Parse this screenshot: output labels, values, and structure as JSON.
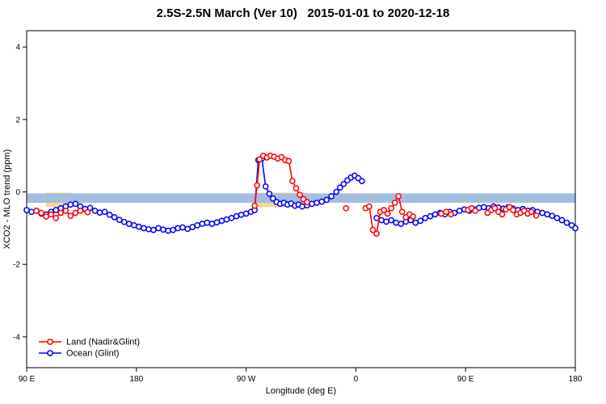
{
  "title": "2.5S-2.5N March (Ver 10)   2015-01-01 to 2020-12-18",
  "chart_data": {
    "type": "line",
    "title": "2.5S-2.5N March (Ver 10)   2015-01-01 to 2020-12-18",
    "xlabel": "Longitude (deg E)",
    "ylabel": "XCO2 - MLO trend (ppm)",
    "xlim": [
      90,
      540
    ],
    "ylim": [
      -4.85,
      4.45
    ],
    "grid": false,
    "legend_position": "bottom-left",
    "xticks": [
      {
        "pos": 90,
        "label": "90 E"
      },
      {
        "pos": 180,
        "label": "180"
      },
      {
        "pos": 270,
        "label": "90 W"
      },
      {
        "pos": 360,
        "label": "0"
      },
      {
        "pos": 450,
        "label": "90 E"
      },
      {
        "pos": 540,
        "label": "180"
      }
    ],
    "yticks": [
      -4,
      -2,
      0,
      2,
      4
    ],
    "bands": [
      {
        "name": "land-band-left",
        "color": "#fcd490",
        "x0": 106,
        "x1": 127,
        "y0": -0.42,
        "y1": -0.02
      },
      {
        "name": "land-band-center",
        "color": "#fcd490",
        "x0": 278,
        "x1": 320,
        "y0": -0.42,
        "y1": -0.02
      },
      {
        "name": "ocean-band",
        "color": "#a3bfdf",
        "x0": 90,
        "x1": 540,
        "y0": -0.3,
        "y1": -0.04
      }
    ],
    "series": [
      {
        "id": "land",
        "name": "Land (Nadir&Glint)",
        "color": "#ff0000",
        "gap": 9,
        "points": [
          [
            98,
            -0.52
          ],
          [
            102,
            -0.58
          ],
          [
            106,
            -0.68
          ],
          [
            110,
            -0.62
          ],
          [
            114,
            -0.72
          ],
          [
            118,
            -0.58
          ],
          [
            122,
            -0.52
          ],
          [
            126,
            -0.66
          ],
          [
            130,
            -0.58
          ],
          [
            134,
            -0.52
          ],
          [
            140,
            -0.56
          ],
          [
            277,
            -0.38
          ],
          [
            279,
            0.18
          ],
          [
            281,
            0.9
          ],
          [
            284,
            1.0
          ],
          [
            287,
            0.95
          ],
          [
            290,
            1.0
          ],
          [
            293,
            0.97
          ],
          [
            296,
            0.92
          ],
          [
            299,
            0.96
          ],
          [
            302,
            0.88
          ],
          [
            305,
            0.85
          ],
          [
            308,
            0.3
          ],
          [
            311,
            0.1
          ],
          [
            314,
            -0.08
          ],
          [
            317,
            -0.2
          ],
          [
            320,
            -0.28
          ],
          [
            352,
            -0.45
          ],
          [
            368,
            -0.45
          ],
          [
            371,
            -0.4
          ],
          [
            374,
            -1.05
          ],
          [
            377,
            -1.15
          ],
          [
            380,
            -0.55
          ],
          [
            383,
            -0.5
          ],
          [
            386,
            -0.6
          ],
          [
            389,
            -0.45
          ],
          [
            392,
            -0.3
          ],
          [
            395,
            -0.12
          ],
          [
            398,
            -0.55
          ],
          [
            401,
            -0.7
          ],
          [
            404,
            -0.62
          ],
          [
            407,
            -0.68
          ],
          [
            430,
            -0.6
          ],
          [
            434,
            -0.55
          ],
          [
            438,
            -0.62
          ],
          [
            452,
            -0.5
          ],
          [
            455,
            -0.45
          ],
          [
            458,
            -0.52
          ],
          [
            468,
            -0.58
          ],
          [
            471,
            -0.5
          ],
          [
            474,
            -0.45
          ],
          [
            477,
            -0.55
          ],
          [
            480,
            -0.62
          ],
          [
            483,
            -0.48
          ],
          [
            486,
            -0.42
          ],
          [
            489,
            -0.5
          ],
          [
            492,
            -0.62
          ],
          [
            495,
            -0.58
          ],
          [
            498,
            -0.52
          ],
          [
            501,
            -0.6
          ],
          [
            504,
            -0.55
          ],
          [
            508,
            -0.65
          ]
        ]
      },
      {
        "id": "ocean",
        "name": "Ocean (Glint)",
        "color": "#0000ff",
        "gap": 9,
        "points": [
          [
            90,
            -0.5
          ],
          [
            94,
            -0.55
          ],
          [
            98,
            -0.52
          ],
          [
            102,
            -0.6
          ],
          [
            106,
            -0.62
          ],
          [
            110,
            -0.55
          ],
          [
            114,
            -0.5
          ],
          [
            118,
            -0.45
          ],
          [
            122,
            -0.4
          ],
          [
            126,
            -0.35
          ],
          [
            130,
            -0.33
          ],
          [
            134,
            -0.4
          ],
          [
            138,
            -0.47
          ],
          [
            142,
            -0.44
          ],
          [
            146,
            -0.52
          ],
          [
            150,
            -0.57
          ],
          [
            154,
            -0.55
          ],
          [
            158,
            -0.63
          ],
          [
            162,
            -0.7
          ],
          [
            166,
            -0.77
          ],
          [
            170,
            -0.83
          ],
          [
            174,
            -0.88
          ],
          [
            178,
            -0.92
          ],
          [
            182,
            -0.96
          ],
          [
            186,
            -1.0
          ],
          [
            190,
            -1.03
          ],
          [
            194,
            -1.05
          ],
          [
            198,
            -1.0
          ],
          [
            202,
            -1.04
          ],
          [
            206,
            -1.07
          ],
          [
            210,
            -1.05
          ],
          [
            214,
            -1.0
          ],
          [
            218,
            -0.98
          ],
          [
            222,
            -1.02
          ],
          [
            226,
            -0.97
          ],
          [
            230,
            -0.92
          ],
          [
            234,
            -0.88
          ],
          [
            238,
            -0.85
          ],
          [
            242,
            -0.88
          ],
          [
            246,
            -0.84
          ],
          [
            250,
            -0.8
          ],
          [
            254,
            -0.76
          ],
          [
            258,
            -0.72
          ],
          [
            262,
            -0.67
          ],
          [
            266,
            -0.63
          ],
          [
            270,
            -0.6
          ],
          [
            274,
            -0.55
          ],
          [
            277,
            -0.5
          ],
          [
            280,
            0.88
          ],
          [
            283,
            0.92
          ],
          [
            286,
            0.15
          ],
          [
            289,
            -0.05
          ],
          [
            292,
            -0.18
          ],
          [
            295,
            -0.28
          ],
          [
            298,
            -0.33
          ],
          [
            301,
            -0.3
          ],
          [
            304,
            -0.35
          ],
          [
            307,
            -0.32
          ],
          [
            310,
            -0.38
          ],
          [
            313,
            -0.35
          ],
          [
            316,
            -0.4
          ],
          [
            320,
            -0.37
          ],
          [
            324,
            -0.33
          ],
          [
            328,
            -0.3
          ],
          [
            332,
            -0.27
          ],
          [
            336,
            -0.22
          ],
          [
            340,
            -0.12
          ],
          [
            344,
            0.0
          ],
          [
            347,
            0.12
          ],
          [
            350,
            0.22
          ],
          [
            353,
            0.32
          ],
          [
            356,
            0.4
          ],
          [
            359,
            0.45
          ],
          [
            362,
            0.38
          ],
          [
            365,
            0.3
          ],
          [
            377,
            -0.72
          ],
          [
            381,
            -0.78
          ],
          [
            385,
            -0.82
          ],
          [
            389,
            -0.78
          ],
          [
            393,
            -0.85
          ],
          [
            397,
            -0.88
          ],
          [
            401,
            -0.82
          ],
          [
            405,
            -0.78
          ],
          [
            409,
            -0.85
          ],
          [
            413,
            -0.8
          ],
          [
            417,
            -0.72
          ],
          [
            421,
            -0.67
          ],
          [
            425,
            -0.62
          ],
          [
            429,
            -0.58
          ],
          [
            433,
            -0.62
          ],
          [
            437,
            -0.55
          ],
          [
            441,
            -0.58
          ],
          [
            445,
            -0.52
          ],
          [
            449,
            -0.48
          ],
          [
            453,
            -0.52
          ],
          [
            457,
            -0.48
          ],
          [
            461,
            -0.44
          ],
          [
            465,
            -0.42
          ],
          [
            469,
            -0.45
          ],
          [
            473,
            -0.4
          ],
          [
            477,
            -0.43
          ],
          [
            481,
            -0.46
          ],
          [
            485,
            -0.42
          ],
          [
            489,
            -0.46
          ],
          [
            493,
            -0.5
          ],
          [
            497,
            -0.47
          ],
          [
            501,
            -0.52
          ],
          [
            505,
            -0.5
          ],
          [
            509,
            -0.55
          ],
          [
            513,
            -0.58
          ],
          [
            517,
            -0.62
          ],
          [
            521,
            -0.66
          ],
          [
            525,
            -0.72
          ],
          [
            529,
            -0.78
          ],
          [
            533,
            -0.85
          ],
          [
            537,
            -0.92
          ],
          [
            540,
            -1.0
          ]
        ]
      }
    ]
  }
}
